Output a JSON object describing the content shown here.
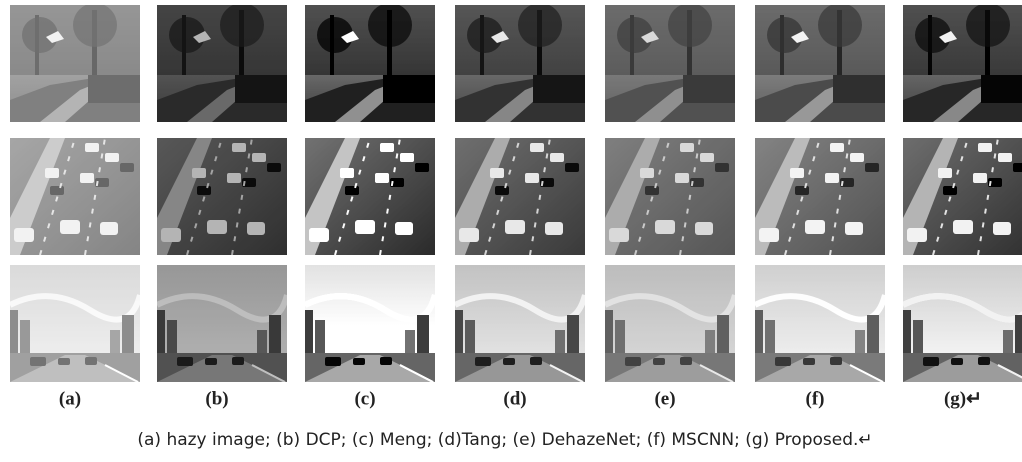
{
  "figure": {
    "labels": [
      "(a)",
      "(b)",
      "(c)",
      "(d)",
      "(e)",
      "(f)",
      "(g)↵"
    ],
    "caption": "(a) hazy image; (b) DCP; (c) Meng; (d)Tang; (e) DehazeNet; (f) MSCNN; (g) Proposed.↵"
  }
}
